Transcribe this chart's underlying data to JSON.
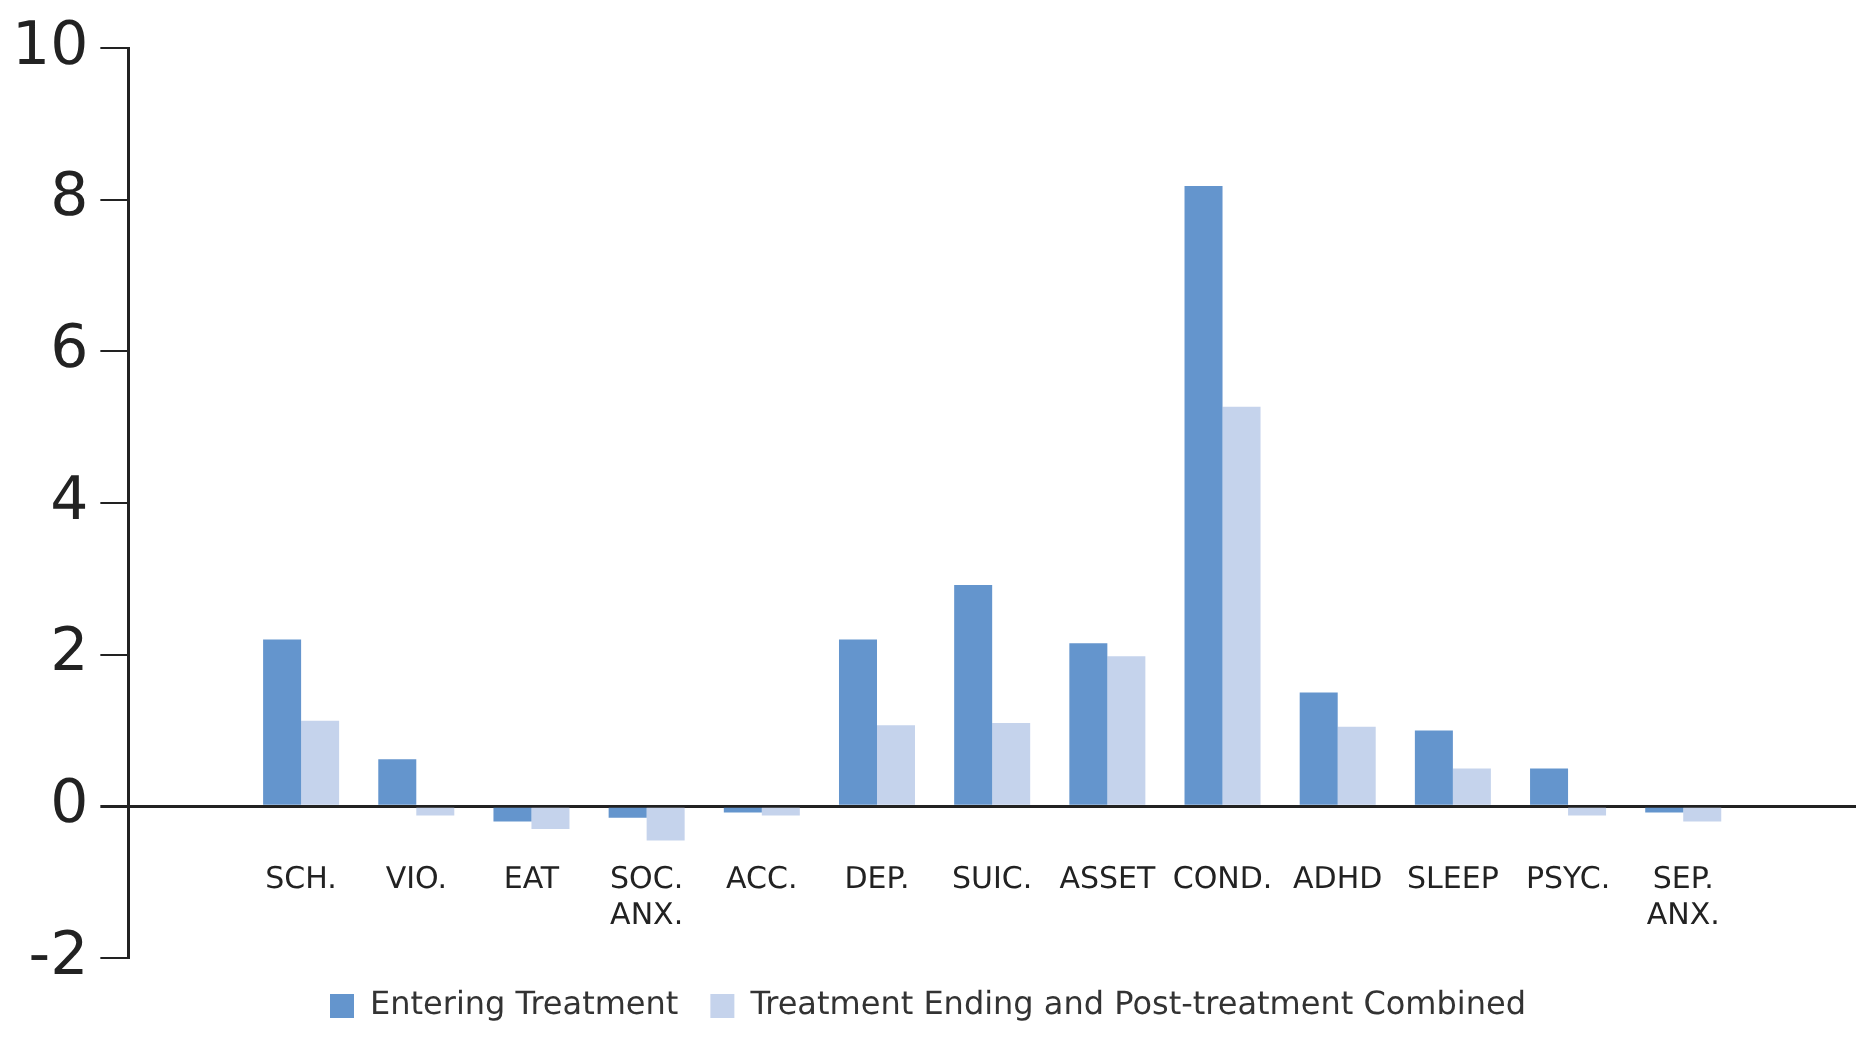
{
  "chart_data": {
    "type": "bar",
    "categories": [
      null,
      "SCH.",
      "VIO.",
      "EAT",
      "SOC.\nANX.",
      "ACC.",
      "DEP.",
      "SUIC.",
      "ASSET",
      "COND.",
      "ADHD",
      "SLEEP",
      "PSYC.",
      "SEP.\nANX.",
      null
    ],
    "series": [
      {
        "name": "Entering Treatment",
        "color": "#6495cd",
        "values": [
          null,
          2.2,
          0.62,
          -0.2,
          -0.15,
          -0.08,
          2.2,
          2.92,
          2.15,
          8.18,
          1.5,
          1.0,
          0.5,
          -0.08,
          null
        ]
      },
      {
        "name": "Treatment Ending and Post-treatment Combined",
        "color": "#c5d3ec",
        "values": [
          null,
          1.13,
          -0.12,
          -0.3,
          -0.45,
          -0.12,
          1.07,
          1.1,
          1.98,
          5.27,
          1.05,
          0.5,
          -0.12,
          -0.2,
          null
        ]
      }
    ],
    "ylim": [
      -2,
      10
    ],
    "yticks": [
      -2,
      0,
      2,
      4,
      6,
      8,
      10
    ],
    "grid": false,
    "legend": "bottom"
  }
}
